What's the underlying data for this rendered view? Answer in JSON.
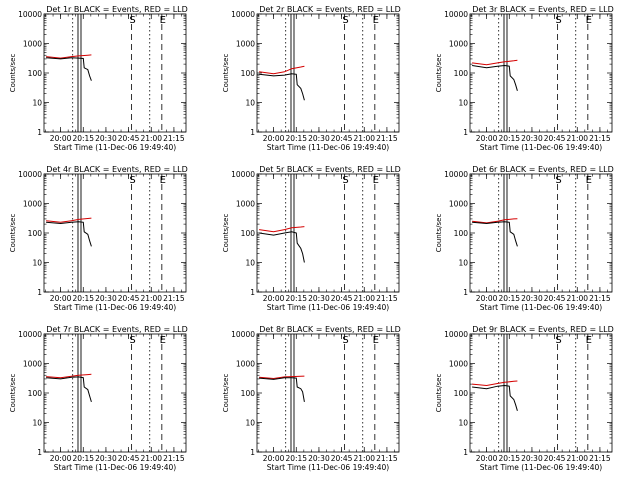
{
  "chart_data": [
    {
      "type": "line",
      "title": "Det 1r BLACK = Events, RED = LLD",
      "xlabel": "Start Time (11-Dec-06 19:49:40)",
      "ylabel": "Counts/sec",
      "yscale": "log",
      "ylim": [
        1,
        10000
      ],
      "xlim": [
        19.8167,
        21.3833
      ],
      "xticks": [
        "20:00",
        "20:15",
        "20:30",
        "20:45",
        "21:00",
        "21:15"
      ],
      "yticks": [
        "1",
        "10",
        "100",
        "1000",
        "10000"
      ],
      "markers": [
        {
          "label": "S",
          "x": 20.7833,
          "style": "dashed"
        },
        {
          "label": "E",
          "x": 21.1167,
          "style": "dashed"
        },
        {
          "label": "",
          "x": 20.1333,
          "style": "dotted"
        },
        {
          "label": "",
          "x": 20.9833,
          "style": "dotted"
        }
      ],
      "series": [
        {
          "color": "#000000",
          "x": [
            19.84,
            20.0,
            20.12,
            20.2,
            20.25,
            20.26,
            20.3,
            20.32,
            20.34
          ],
          "y": [
            330,
            300,
            330,
            320,
            310,
            150,
            130,
            80,
            55
          ]
        },
        {
          "color": "#d40000",
          "x": [
            19.84,
            20.0,
            20.12,
            20.2,
            20.3,
            20.34
          ],
          "y": [
            360,
            320,
            360,
            380,
            400,
            410
          ]
        }
      ]
    },
    {
      "type": "line",
      "title": "Det 2r BLACK = Events, RED = LLD",
      "xlabel": "Start Time (11-Dec-06 19:49:40)",
      "ylabel": "Counts/sec",
      "yscale": "log",
      "ylim": [
        1,
        10000
      ],
      "xlim": [
        19.8167,
        21.3833
      ],
      "xticks": [
        "20:00",
        "20:15",
        "20:30",
        "20:45",
        "21:00",
        "21:15"
      ],
      "yticks": [
        "1",
        "10",
        "100",
        "1000",
        "10000"
      ],
      "markers": [
        {
          "label": "S",
          "x": 20.7833,
          "style": "dashed"
        },
        {
          "label": "E",
          "x": 21.1167,
          "style": "dashed"
        },
        {
          "label": "",
          "x": 20.1333,
          "style": "dotted"
        },
        {
          "label": "",
          "x": 20.9833,
          "style": "dotted"
        }
      ],
      "series": [
        {
          "color": "#000000",
          "x": [
            19.84,
            20.0,
            20.12,
            20.2,
            20.25,
            20.26,
            20.3,
            20.32,
            20.34
          ],
          "y": [
            90,
            80,
            85,
            95,
            90,
            40,
            30,
            20,
            12
          ]
        },
        {
          "color": "#d40000",
          "x": [
            19.84,
            20.0,
            20.12,
            20.2,
            20.3,
            20.34
          ],
          "y": [
            110,
            95,
            110,
            140,
            160,
            170
          ]
        }
      ]
    },
    {
      "type": "line",
      "title": "Det 3r BLACK = Events, RED = LLD",
      "xlabel": "Start Time (11-Dec-06 19:49:40)",
      "ylabel": "Counts/sec",
      "yscale": "log",
      "ylim": [
        1,
        10000
      ],
      "xlim": [
        19.8167,
        21.3833
      ],
      "xticks": [
        "20:00",
        "20:15",
        "20:30",
        "20:45",
        "21:00",
        "21:15"
      ],
      "yticks": [
        "1",
        "10",
        "100",
        "1000",
        "10000"
      ],
      "markers": [
        {
          "label": "S",
          "x": 20.7833,
          "style": "dashed"
        },
        {
          "label": "E",
          "x": 21.1167,
          "style": "dashed"
        },
        {
          "label": "",
          "x": 20.1333,
          "style": "dotted"
        },
        {
          "label": "",
          "x": 20.9833,
          "style": "dotted"
        }
      ],
      "series": [
        {
          "color": "#000000",
          "x": [
            19.84,
            20.0,
            20.12,
            20.2,
            20.25,
            20.26,
            20.3,
            20.32,
            20.34
          ],
          "y": [
            180,
            150,
            170,
            180,
            170,
            80,
            60,
            40,
            25
          ]
        },
        {
          "color": "#d40000",
          "x": [
            19.84,
            20.0,
            20.12,
            20.2,
            20.3,
            20.34
          ],
          "y": [
            220,
            190,
            220,
            240,
            260,
            270
          ]
        }
      ]
    },
    {
      "type": "line",
      "title": "Det 4r BLACK = Events, RED = LLD",
      "xlabel": "Start Time (11-Dec-06 19:49:40)",
      "ylabel": "Counts/sec",
      "yscale": "log",
      "ylim": [
        1,
        10000
      ],
      "xlim": [
        19.8167,
        21.3833
      ],
      "xticks": [
        "20:00",
        "20:15",
        "20:30",
        "20:45",
        "21:00",
        "21:15"
      ],
      "yticks": [
        "1",
        "10",
        "100",
        "1000",
        "10000"
      ],
      "markers": [
        {
          "label": "S",
          "x": 20.7833,
          "style": "dashed"
        },
        {
          "label": "E",
          "x": 21.1167,
          "style": "dashed"
        },
        {
          "label": "",
          "x": 20.1333,
          "style": "dotted"
        },
        {
          "label": "",
          "x": 20.9833,
          "style": "dotted"
        }
      ],
      "series": [
        {
          "color": "#000000",
          "x": [
            19.84,
            20.0,
            20.12,
            20.2,
            20.25,
            20.26,
            20.3,
            20.32,
            20.34
          ],
          "y": [
            230,
            210,
            230,
            240,
            230,
            110,
            90,
            55,
            35
          ]
        },
        {
          "color": "#d40000",
          "x": [
            19.84,
            20.0,
            20.12,
            20.2,
            20.3,
            20.34
          ],
          "y": [
            260,
            230,
            260,
            290,
            310,
            320
          ]
        }
      ]
    },
    {
      "type": "line",
      "title": "Det 5r BLACK = Events, RED = LLD",
      "xlabel": "Start Time (11-Dec-06 19:49:40)",
      "ylabel": "Counts/sec",
      "yscale": "log",
      "ylim": [
        1,
        10000
      ],
      "xlim": [
        19.8167,
        21.3833
      ],
      "xticks": [
        "20:00",
        "20:15",
        "20:30",
        "20:45",
        "21:00",
        "21:15"
      ],
      "yticks": [
        "1",
        "10",
        "100",
        "1000",
        "10000"
      ],
      "markers": [
        {
          "label": "S",
          "x": 20.7833,
          "style": "dashed"
        },
        {
          "label": "E",
          "x": 21.1167,
          "style": "dashed"
        },
        {
          "label": "",
          "x": 20.1333,
          "style": "dotted"
        },
        {
          "label": "",
          "x": 20.9833,
          "style": "dotted"
        }
      ],
      "series": [
        {
          "color": "#000000",
          "x": [
            19.84,
            20.0,
            20.12,
            20.2,
            20.25,
            20.26,
            20.3,
            20.32,
            20.34
          ],
          "y": [
            100,
            85,
            100,
            110,
            100,
            45,
            30,
            20,
            10
          ]
        },
        {
          "color": "#d40000",
          "x": [
            19.84,
            20.0,
            20.12,
            20.2,
            20.3,
            20.34
          ],
          "y": [
            130,
            110,
            130,
            150,
            160,
            165
          ]
        }
      ]
    },
    {
      "type": "line",
      "title": "Det 6r BLACK = Events, RED = LLD",
      "xlabel": "Start Time (11-Dec-06 19:49:40)",
      "ylabel": "Counts/sec",
      "yscale": "log",
      "ylim": [
        1,
        10000
      ],
      "xlim": [
        19.8167,
        21.3833
      ],
      "xticks": [
        "20:00",
        "20:15",
        "20:30",
        "20:45",
        "21:00",
        "21:15"
      ],
      "yticks": [
        "1",
        "10",
        "100",
        "1000",
        "10000"
      ],
      "markers": [
        {
          "label": "S",
          "x": 20.7833,
          "style": "dashed"
        },
        {
          "label": "E",
          "x": 21.1167,
          "style": "dashed"
        },
        {
          "label": "",
          "x": 20.1333,
          "style": "dotted"
        },
        {
          "label": "",
          "x": 20.9833,
          "style": "dotted"
        }
      ],
      "series": [
        {
          "color": "#000000",
          "x": [
            19.84,
            20.0,
            20.12,
            20.2,
            20.25,
            20.26,
            20.3,
            20.32,
            20.34
          ],
          "y": [
            230,
            210,
            230,
            240,
            230,
            110,
            90,
            55,
            35
          ]
        },
        {
          "color": "#d40000",
          "x": [
            19.84,
            20.0,
            20.12,
            20.2,
            20.3,
            20.34
          ],
          "y": [
            250,
            220,
            250,
            280,
            300,
            305
          ]
        }
      ]
    },
    {
      "type": "line",
      "title": "Det 7r BLACK = Events, RED = LLD",
      "xlabel": "Start Time (11-Dec-06 19:49:40)",
      "ylabel": "Counts/sec",
      "yscale": "log",
      "ylim": [
        1,
        10000
      ],
      "xlim": [
        19.8167,
        21.3833
      ],
      "xticks": [
        "20:00",
        "20:15",
        "20:30",
        "20:45",
        "21:00",
        "21:15"
      ],
      "yticks": [
        "1",
        "10",
        "100",
        "1000",
        "10000"
      ],
      "markers": [
        {
          "label": "S",
          "x": 20.7833,
          "style": "dashed"
        },
        {
          "label": "E",
          "x": 21.1167,
          "style": "dashed"
        },
        {
          "label": "",
          "x": 20.1333,
          "style": "dotted"
        },
        {
          "label": "",
          "x": 20.9833,
          "style": "dotted"
        }
      ],
      "series": [
        {
          "color": "#000000",
          "x": [
            19.84,
            20.0,
            20.12,
            20.2,
            20.25,
            20.26,
            20.3,
            20.32,
            20.34
          ],
          "y": [
            330,
            300,
            340,
            350,
            330,
            160,
            130,
            80,
            50
          ]
        },
        {
          "color": "#d40000",
          "x": [
            19.84,
            20.0,
            20.12,
            20.2,
            20.3,
            20.34
          ],
          "y": [
            360,
            330,
            370,
            400,
            420,
            430
          ]
        }
      ]
    },
    {
      "type": "line",
      "title": "Det 8r BLACK = Events, RED = LLD",
      "xlabel": "Start Time (11-Dec-06 19:49:40)",
      "ylabel": "Counts/sec",
      "yscale": "log",
      "ylim": [
        1,
        10000
      ],
      "xlim": [
        19.8167,
        21.3833
      ],
      "xticks": [
        "20:00",
        "20:15",
        "20:30",
        "20:45",
        "21:00",
        "21:15"
      ],
      "yticks": [
        "1",
        "10",
        "100",
        "1000",
        "10000"
      ],
      "markers": [
        {
          "label": "S",
          "x": 20.7833,
          "style": "dashed"
        },
        {
          "label": "E",
          "x": 21.1167,
          "style": "dashed"
        },
        {
          "label": "",
          "x": 20.1333,
          "style": "dotted"
        },
        {
          "label": "",
          "x": 20.9833,
          "style": "dotted"
        }
      ],
      "series": [
        {
          "color": "#000000",
          "x": [
            19.84,
            20.0,
            20.12,
            20.2,
            20.25,
            20.26,
            20.3,
            20.32,
            20.34
          ],
          "y": [
            320,
            290,
            330,
            330,
            320,
            160,
            140,
            110,
            50
          ]
        },
        {
          "color": "#d40000",
          "x": [
            19.84,
            20.0,
            20.12,
            20.2,
            20.3,
            20.34
          ],
          "y": [
            340,
            310,
            350,
            360,
            370,
            375
          ]
        }
      ]
    },
    {
      "type": "line",
      "title": "Det 9r BLACK = Events, RED = LLD",
      "xlabel": "Start Time (11-Dec-06 19:49:40)",
      "ylabel": "Counts/sec",
      "yscale": "log",
      "ylim": [
        1,
        10000
      ],
      "xlim": [
        19.8167,
        21.3833
      ],
      "xticks": [
        "20:00",
        "20:15",
        "20:30",
        "20:45",
        "21:00",
        "21:15"
      ],
      "yticks": [
        "1",
        "10",
        "100",
        "1000",
        "10000"
      ],
      "markers": [
        {
          "label": "S",
          "x": 20.7833,
          "style": "dashed"
        },
        {
          "label": "E",
          "x": 21.1167,
          "style": "dashed"
        },
        {
          "label": "",
          "x": 20.1333,
          "style": "dotted"
        },
        {
          "label": "",
          "x": 20.9833,
          "style": "dotted"
        }
      ],
      "series": [
        {
          "color": "#000000",
          "x": [
            19.84,
            20.0,
            20.12,
            20.2,
            20.25,
            20.26,
            20.3,
            20.32,
            20.34
          ],
          "y": [
            160,
            140,
            170,
            180,
            170,
            80,
            60,
            40,
            25
          ]
        },
        {
          "color": "#d40000",
          "x": [
            19.84,
            20.0,
            20.12,
            20.2,
            20.3,
            20.34
          ],
          "y": [
            200,
            180,
            210,
            230,
            250,
            255
          ]
        }
      ]
    }
  ]
}
